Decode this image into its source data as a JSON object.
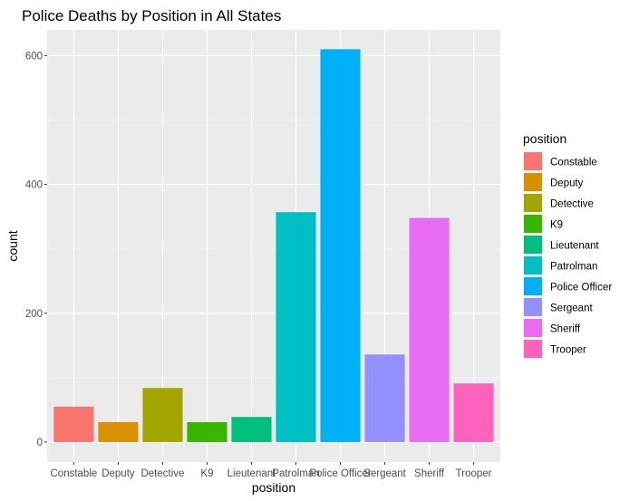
{
  "chart_data": {
    "type": "bar",
    "title": "Police Deaths by Position in All States",
    "xlabel": "position",
    "ylabel": "count",
    "categories": [
      "Constable",
      "Deputy",
      "Detective",
      "K9",
      "Lieutenant",
      "Patrolman",
      "Police Officer",
      "Sergeant",
      "Sheriff",
      "Trooper"
    ],
    "values": [
      55,
      31,
      84,
      31,
      39,
      357,
      610,
      136,
      348,
      91
    ],
    "colors": [
      "#F8766D",
      "#D89000",
      "#A3A500",
      "#39B600",
      "#00BF7D",
      "#00BFC4",
      "#00B0F6",
      "#9590FF",
      "#E76BF3",
      "#FF62BC"
    ],
    "ylim": [
      -31,
      640
    ],
    "yticks": [
      0,
      200,
      400,
      600
    ],
    "grid": true,
    "legend": {
      "title": "position",
      "placement": "right",
      "entries": [
        "Constable",
        "Deputy",
        "Detective",
        "K9",
        "Lieutenant",
        "Patrolman",
        "Police Officer",
        "Sergeant",
        "Sheriff",
        "Trooper"
      ]
    }
  }
}
